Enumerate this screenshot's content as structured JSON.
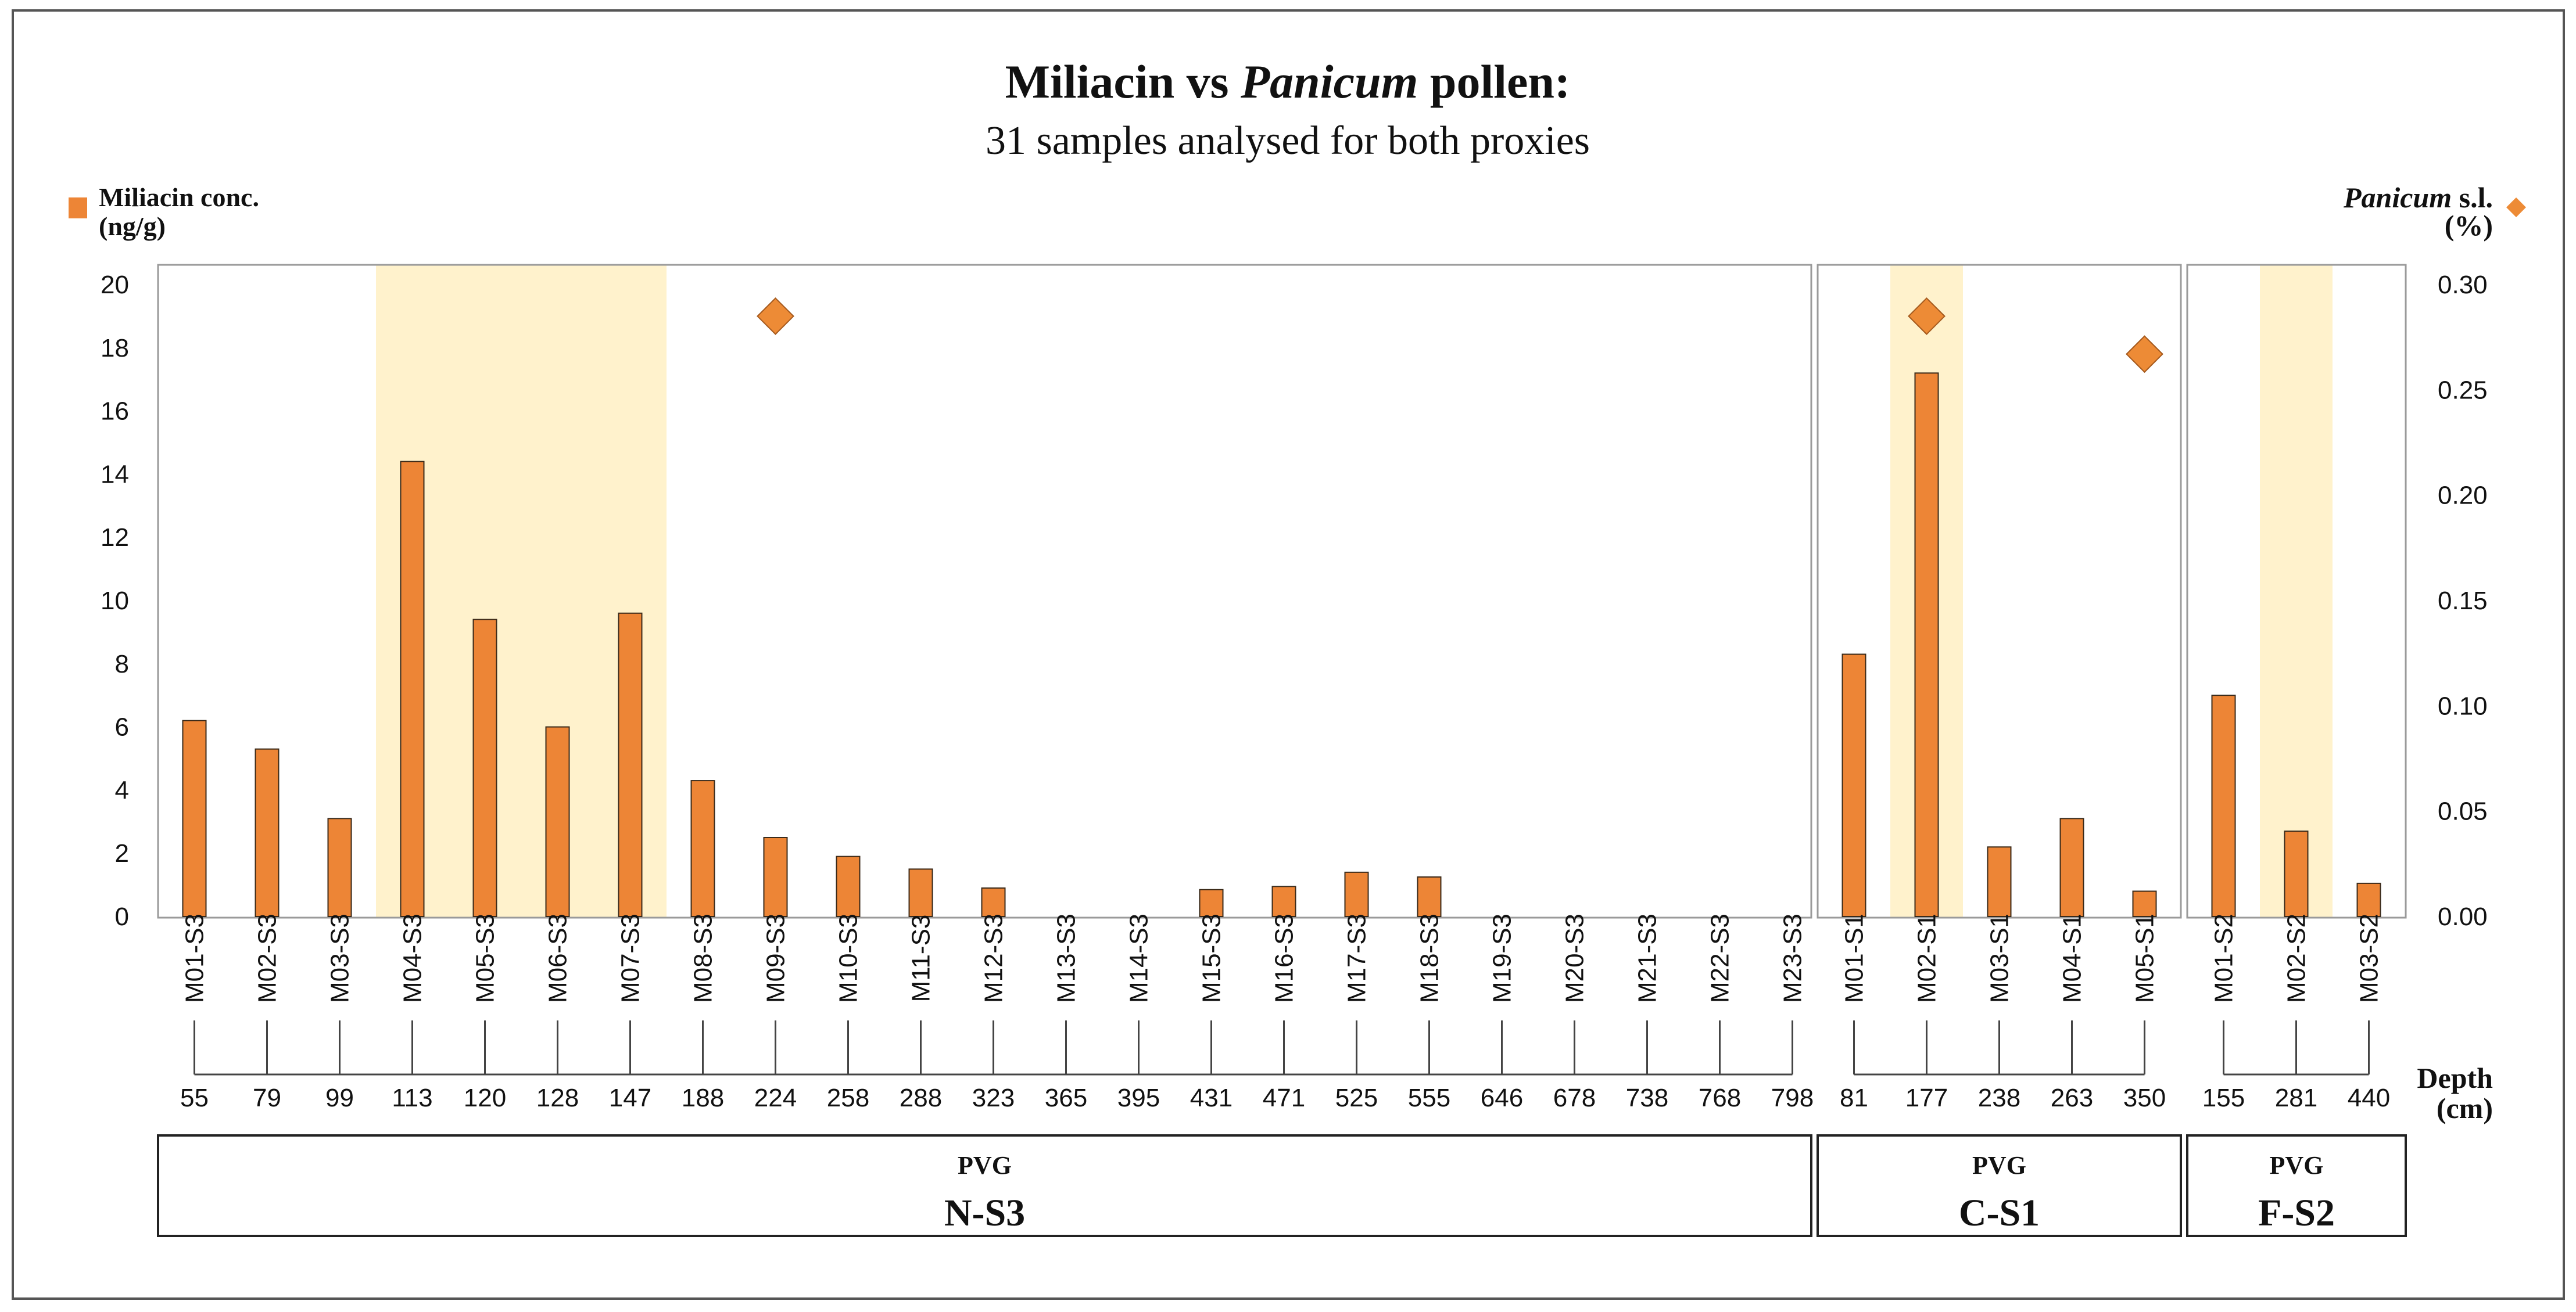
{
  "chart_data": {
    "type": "bar",
    "title_prefix": "Miliacin vs ",
    "title_italic": "Panicum",
    "title_suffix": " pollen:",
    "subtitle": "31 samples analysed for both proxies",
    "left_axis": {
      "label_line1": "Miliacin conc.",
      "label_line2": "(ng/g)",
      "ylim": [
        0,
        20
      ],
      "ticks": [
        "0",
        "2",
        "4",
        "6",
        "8",
        "10",
        "12",
        "14",
        "16",
        "18",
        "20"
      ]
    },
    "right_axis": {
      "label_italic": "Panicum",
      "label_rest": " s.l.",
      "label_line2": "(%)",
      "ylim": [
        0,
        0.3
      ],
      "ticks": [
        "0.00",
        "0.05",
        "0.10",
        "0.15",
        "0.20",
        "0.25",
        "0.30"
      ]
    },
    "depth_label_line1": "Depth",
    "depth_label_line2": "(cm)",
    "colors": {
      "bar": "#ED8536",
      "bar_edge": "#3a2a1a",
      "highlight": "#FFF2CC",
      "diamond": "#ED8B36",
      "frame": "#9a9a9a"
    },
    "panels": [
      {
        "site": "PVG",
        "core": "N-S3",
        "samples": [
          "M01-S3",
          "M02-S3",
          "M03-S3",
          "M04-S3",
          "M05-S3",
          "M06-S3",
          "M07-S3",
          "M08-S3",
          "M09-S3",
          "M10-S3",
          "M11-S3",
          "M12-S3",
          "M13-S3",
          "M14-S3",
          "M15-S3",
          "M16-S3",
          "M17-S3",
          "M18-S3",
          "M19-S3",
          "M20-S3",
          "M21-S3",
          "M22-S3",
          "M23-S3"
        ],
        "depths": [
          "55",
          "79",
          "99",
          "113",
          "120",
          "128",
          "147",
          "188",
          "224",
          "258",
          "288",
          "323",
          "365",
          "395",
          "431",
          "471",
          "525",
          "555",
          "646",
          "678",
          "738",
          "768",
          "798"
        ],
        "miliacin": [
          6.2,
          5.3,
          3.1,
          14.4,
          9.4,
          6.0,
          9.6,
          4.3,
          2.5,
          1.9,
          1.5,
          0.9,
          0,
          0,
          0.85,
          0.95,
          1.4,
          1.25,
          0,
          0,
          0,
          0,
          0
        ],
        "panicum": [
          null,
          null,
          null,
          null,
          null,
          null,
          null,
          null,
          0.285,
          null,
          null,
          null,
          null,
          null,
          null,
          null,
          null,
          null,
          null,
          null,
          null,
          null,
          null
        ],
        "highlight_range": [
          3,
          6
        ]
      },
      {
        "site": "PVG",
        "core": "C-S1",
        "samples": [
          "M01-S1",
          "M02-S1",
          "M03-S1",
          "M04-S1",
          "M05-S1"
        ],
        "depths": [
          "81",
          "177",
          "238",
          "263",
          "350"
        ],
        "miliacin": [
          8.3,
          17.2,
          2.2,
          3.1,
          0.8
        ],
        "panicum": [
          null,
          0.285,
          null,
          null,
          0.267
        ],
        "highlight_range": [
          1,
          1
        ]
      },
      {
        "site": "PVG",
        "core": "F-S2",
        "samples": [
          "M01-S2",
          "M02-S2",
          "M03-S2"
        ],
        "depths": [
          "155",
          "281",
          "440"
        ],
        "miliacin": [
          7.0,
          2.7,
          1.05
        ],
        "panicum": [
          null,
          null,
          null
        ],
        "highlight_range": [
          1,
          1
        ]
      }
    ]
  }
}
